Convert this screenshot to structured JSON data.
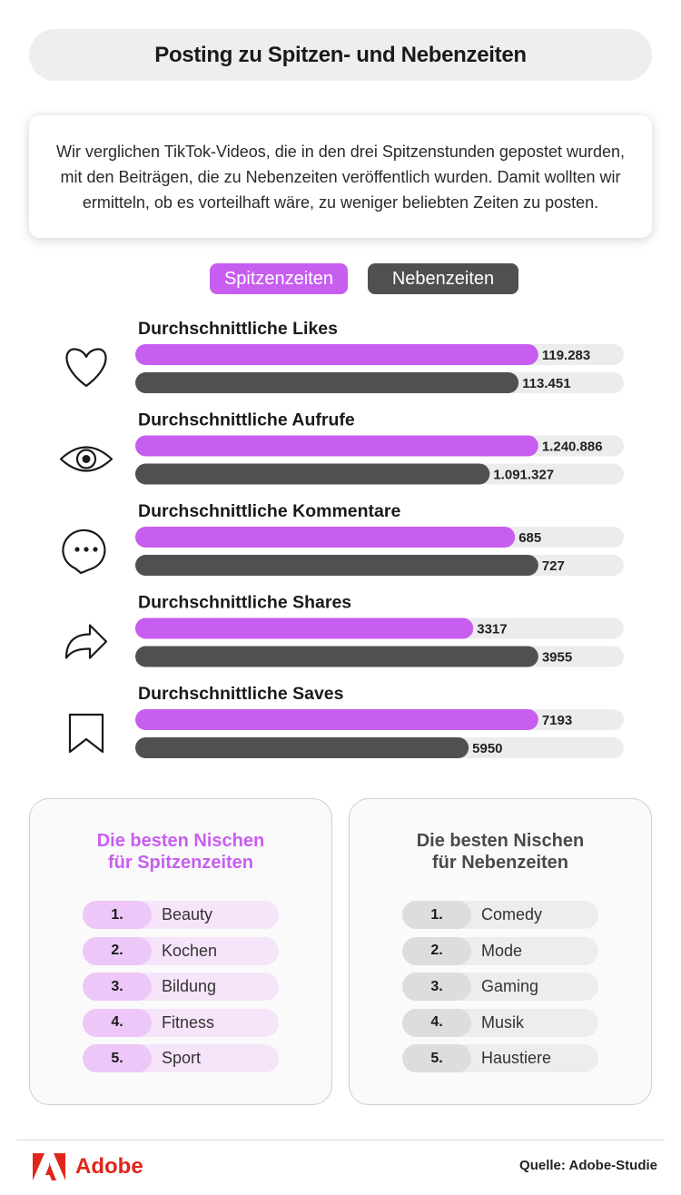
{
  "title": "Posting zu Spitzen- und Nebenzeiten",
  "intro": "Wir verglichen TikTok-Videos, die in den drei Spitzenstunden gepostet wurden, mit den Beiträgen, die zu Nebenzeiten veröffentlich wurden. Damit wollten wir ermitteln, ob es vorteilhaft wäre, zu weniger beliebten Zeiten zu posten.",
  "colors": {
    "peak": "#c75ef0",
    "offpeak": "#505050",
    "track": "#ececec",
    "brand": "#e1251b"
  },
  "chart_data": {
    "type": "bar",
    "legend": [
      "Spitzenzeiten",
      "Nebenzeiten"
    ],
    "groups": [
      {
        "label": "Durchschnittliche Likes",
        "icon": "heart-icon",
        "values": [
          119283,
          113451
        ],
        "labels": [
          "119.283",
          "113.451"
        ]
      },
      {
        "label": "Durchschnittliche Aufrufe",
        "icon": "eye-icon",
        "values": [
          1240886,
          1091327
        ],
        "labels": [
          "1.240.886",
          "1.091.327"
        ]
      },
      {
        "label": "Durchschnittliche Kommentare",
        "icon": "speech-bubble-icon",
        "values": [
          685,
          727
        ],
        "labels": [
          "685",
          "727"
        ]
      },
      {
        "label": "Durchschnittliche Shares",
        "icon": "share-arrow-icon",
        "values": [
          3317,
          3955
        ],
        "labels": [
          "3317",
          "3955"
        ]
      },
      {
        "label": "Durchschnittliche Saves",
        "icon": "bookmark-icon",
        "values": [
          7193,
          5950
        ],
        "labels": [
          "7193",
          "5950"
        ]
      }
    ]
  },
  "niches": {
    "peak": {
      "title_line1": "Die besten Nischen",
      "title_line2": "für Spitzenzeiten",
      "items": [
        {
          "rank": "1.",
          "label": "Beauty"
        },
        {
          "rank": "2.",
          "label": "Kochen"
        },
        {
          "rank": "3.",
          "label": "Bildung"
        },
        {
          "rank": "4.",
          "label": "Fitness"
        },
        {
          "rank": "5.",
          "label": "Sport"
        }
      ]
    },
    "offpeak": {
      "title_line1": "Die besten Nischen",
      "title_line2": "für Nebenzeiten",
      "items": [
        {
          "rank": "1.",
          "label": "Comedy"
        },
        {
          "rank": "2.",
          "label": "Mode"
        },
        {
          "rank": "3.",
          "label": "Gaming"
        },
        {
          "rank": "4.",
          "label": "Musik"
        },
        {
          "rank": "5.",
          "label": "Haustiere"
        }
      ]
    }
  },
  "footer": {
    "brand": "Adobe",
    "source": "Quelle: Adobe-Studie"
  }
}
